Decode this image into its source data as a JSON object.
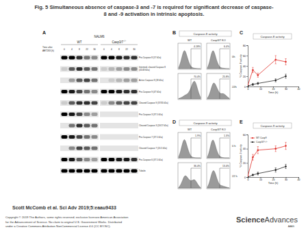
{
  "title_lines": [
    "Fig. 5 Simultaneous absence of caspase-3 and -7 is required for significant decrease of caspase-",
    "8 and -9 activation in intrinsic apoptosis."
  ],
  "panel_a": {
    "letter": "A",
    "cell_line": "NALM6",
    "groups": [
      {
        "text": "WT"
      },
      {
        "text": "Casp3/7",
        "sup": "−/−"
      }
    ],
    "time_label_lines": [
      "Time after",
      "ABT263 (h)"
    ],
    "times": [
      0,
      4,
      8,
      22,
      30
    ],
    "blots": [
      {
        "label": [
          "Pro-Caspase 8 (57 kDa)"
        ],
        "intensity": [
          1,
          1,
          0.8,
          0.5,
          0.4,
          1,
          1,
          0.9,
          0.8,
          0.8
        ]
      },
      {
        "label": [
          "Intermed. cleaved Caspase 8",
          "(41/43 kDa)"
        ],
        "intensity": [
          0.1,
          0.6,
          0.8,
          0.6,
          0.5,
          0.1,
          0.2,
          0.3,
          0.4,
          0.4
        ]
      },
      {
        "label": [
          "Active Caspase 8 (18 kDa)"
        ],
        "intensity": [
          0,
          0.3,
          0.6,
          0.7,
          0.5,
          0,
          0.1,
          0.2,
          0.3,
          0.3
        ]
      },
      {
        "label": [
          "Pro-Caspase 9 (47 kDa)"
        ],
        "intensity": [
          1,
          0.9,
          0.7,
          0.5,
          0.4,
          1,
          1,
          0.9,
          0.8,
          0.8
        ]
      },
      {
        "label": [
          "Cleaved Caspase 9 (37/35 kDa)"
        ],
        "intensity": [
          0.1,
          0.6,
          0.8,
          0.8,
          0.7,
          0.1,
          0.4,
          0.6,
          0.7,
          0.7
        ]
      },
      {
        "label": [
          "Pro-Caspase 3 (37.5 kDa)"
        ],
        "intensity": [
          1,
          0.9,
          0.7,
          0.4,
          0.3,
          0,
          0,
          0,
          0,
          0
        ]
      },
      {
        "label": [
          "Cleaved Caspase 3 (20/17 kDa)"
        ],
        "intensity": [
          0,
          0.5,
          0.8,
          0.6,
          0.5,
          0,
          0,
          0,
          0,
          0
        ]
      },
      {
        "label": [
          "Pro-Caspase 7 (37.5 kDa)"
        ],
        "intensity": [
          1,
          0.9,
          0.7,
          0.5,
          0.4,
          0,
          0,
          0,
          0,
          0
        ]
      },
      {
        "label": [
          "Cleaved Caspase 7 (20.5 kDa)"
        ],
        "intensity": [
          0,
          0.4,
          0.7,
          0.6,
          0.5,
          0,
          0,
          0,
          0,
          0
        ]
      },
      {
        "label": [
          "Pro-Caspase 6 (37.5 kDa)"
        ],
        "intensity": [
          1,
          0.9,
          0.6,
          0.4,
          0.3,
          1,
          1,
          0.9,
          0.9,
          0.8
        ]
      },
      {
        "label": [
          "Tubulin"
        ],
        "intensity": [
          1,
          1,
          1,
          1,
          1,
          1,
          1,
          1,
          1,
          1
        ]
      }
    ]
  },
  "flow_panels": [
    {
      "letter": "B",
      "title": "Caspase-8 activity",
      "columns": [
        "WT",
        "Casp3/7 KO"
      ],
      "rows": [
        "0h",
        "22h"
      ],
      "histograms": [
        [
          {
            "label": "4.18%",
            "counts": [
              5,
              30,
              75,
              100,
              70,
              35,
              12,
              4,
              2,
              1,
              0,
              0
            ]
          },
          {
            "label": "6.4%",
            "counts": [
              4,
              28,
              80,
              98,
              65,
              30,
              10,
              4,
              2,
              1,
              0,
              0
            ]
          }
        ],
        [
          {
            "label": "70.4%",
            "counts": [
              2,
              5,
              10,
              18,
              22,
              30,
              50,
              80,
              95,
              70,
              30,
              8
            ]
          },
          {
            "label": "25.8%",
            "counts": [
              4,
              20,
              55,
              85,
              75,
              50,
              30,
              25,
              28,
              20,
              10,
              3
            ]
          }
        ]
      ]
    },
    {
      "letter": "D",
      "title": "Caspase-9 activity",
      "columns": [
        "WT",
        "Casp3/7 KO"
      ],
      "rows": [
        "0 h",
        "22 h"
      ],
      "histograms": [
        [
          {
            "label": "1.9%",
            "counts": [
              5,
              32,
              78,
              100,
              68,
              32,
              10,
              3,
              1,
              0,
              0,
              0
            ]
          },
          {
            "label": "1.3%",
            "counts": [
              4,
              30,
              82,
              97,
              62,
              28,
              9,
              3,
              1,
              0,
              0,
              0
            ]
          }
        ],
        [
          {
            "label": "36.4%",
            "counts": [
              3,
              15,
              40,
              65,
              60,
              45,
              35,
              40,
              45,
              30,
              12,
              3
            ]
          },
          {
            "label": "13.4%",
            "counts": [
              5,
              25,
              70,
              95,
              75,
              40,
              18,
              12,
              10,
              7,
              3,
              1
            ]
          }
        ]
      ]
    }
  ],
  "chart_data": [
    {
      "type": "line",
      "letter": "C",
      "title": "Caspase-8 activity",
      "x_label": "Time (h)",
      "y_label": "% Caspase-8 activity",
      "x": [
        0,
        4,
        8,
        22,
        30
      ],
      "xlim": [
        0,
        40
      ],
      "xticks": [
        0,
        10,
        20,
        30,
        40
      ],
      "ylim": [
        0,
        80
      ],
      "yticks": [
        0,
        20,
        40,
        60,
        80
      ],
      "series": [
        {
          "color": "#e0302a",
          "marker": "circle",
          "values": [
            2,
            32,
            22,
            52,
            48
          ],
          "errors": [
            1,
            5,
            4,
            8,
            6
          ]
        },
        {
          "color": "#222222",
          "marker": "circle",
          "values": [
            1,
            4,
            6,
            12,
            20
          ],
          "errors": [
            1,
            2,
            2,
            3,
            4
          ]
        }
      ]
    },
    {
      "type": "line",
      "letter": "E",
      "title": "Caspase-9 activity",
      "x_label": "Time (h)",
      "y_label": "% Caspase-9 activity",
      "x": [
        0,
        4,
        8,
        22,
        30
      ],
      "xlim": [
        0,
        40
      ],
      "xticks": [
        0,
        10,
        20,
        30,
        40
      ],
      "ylim": [
        0,
        60
      ],
      "yticks": [
        0,
        20,
        40,
        60
      ],
      "legend": "upper left",
      "series": [
        {
          "name": "WT Casp9",
          "color": "#e0302a",
          "marker": "circle",
          "values": [
            1,
            28,
            38,
            40,
            44
          ],
          "errors": [
            1,
            4,
            5,
            4,
            5
          ]
        },
        {
          "name": "Casp3/7−/−",
          "color": "#222222",
          "marker": "circle",
          "values": [
            0,
            3,
            5,
            10,
            15
          ],
          "errors": [
            0,
            1,
            2,
            3,
            3
          ]
        }
      ]
    }
  ],
  "footer": {
    "citation": "Scott McComb et al. Sci Adv 2019;5:eaau9433",
    "copyright_lines": [
      "Copyright © 2019 The Authors, some rights reserved; exclusive licensee American Association",
      "for the Advancement of Science. No claim to original U.S. Government Works. Distributed",
      "under a Creative Commons Attribution NonCommercial License 4.0 (CC BY-NC)."
    ],
    "logo": {
      "part1": "Science",
      "part2": "Advances",
      "sub": "AAAS"
    }
  }
}
